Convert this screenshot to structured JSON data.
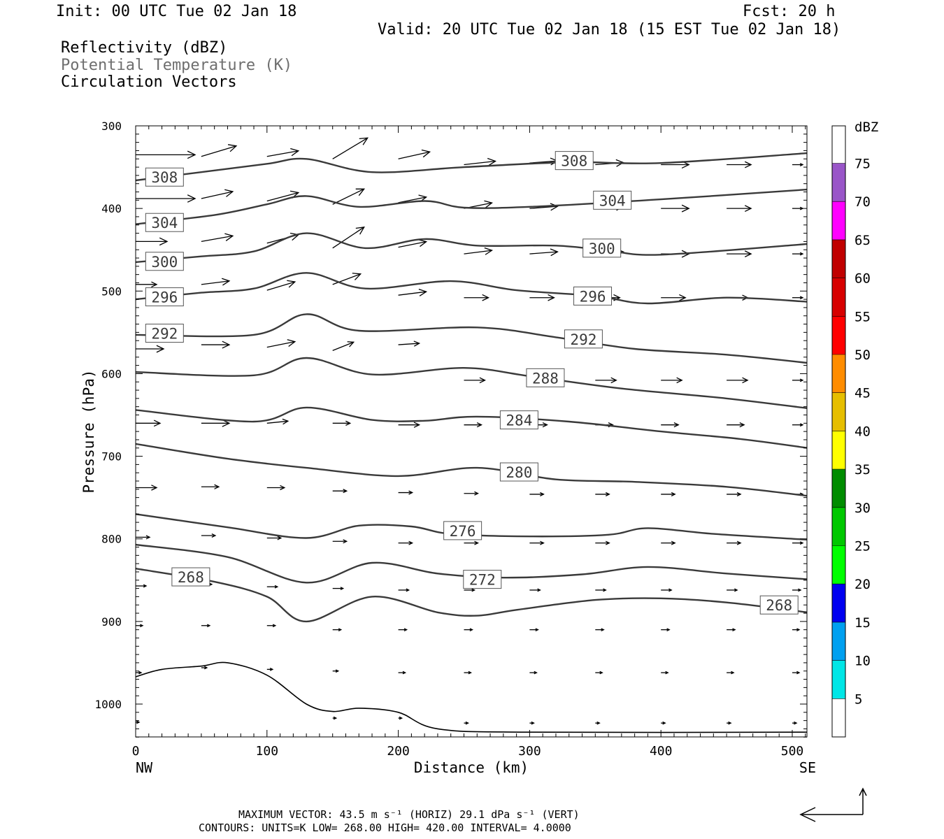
{
  "header": {
    "init": "Init: 00 UTC Tue 02 Jan 18",
    "fcst": "Fcst:   20 h",
    "valid": "Valid: 20 UTC Tue 02 Jan 18 (15 EST Tue 02 Jan 18)",
    "field1": "Reflectivity (dBZ)",
    "field2": "Potential Temperature (K)",
    "field3": "Circulation Vectors"
  },
  "footer": {
    "max_vector": "MAXIMUM VECTOR:  43.5 m s⁻¹ (HORIZ)        29.1 dPa s⁻¹ (VERT)",
    "contours": "CONTOURS:  UNITS=K  LOW=   268.00       HIGH=   420.00       INTERVAL=    4.0000"
  },
  "colors": {
    "contour": "#3a3a3a",
    "terrain": "#000000",
    "vector": "#000000"
  },
  "chart_data": {
    "type": "cross-section",
    "xlabel": "Distance (km)",
    "ylabel": "Pressure (hPa)",
    "x_ticks": [
      "0",
      "100",
      "200",
      "300",
      "400",
      "500"
    ],
    "y_ticks": [
      "300",
      "400",
      "500",
      "600",
      "700",
      "800",
      "900",
      "1000"
    ],
    "x_end_labels": {
      "left": "NW",
      "right": "SE"
    },
    "xlim": [
      0,
      512
    ],
    "ylim": [
      300,
      1040
    ],
    "colorbar": {
      "title": "dBZ",
      "labels": [
        "5",
        "10",
        "15",
        "20",
        "25",
        "30",
        "35",
        "40",
        "45",
        "50",
        "55",
        "60",
        "65",
        "70",
        "75"
      ],
      "colors": [
        "#ffffff",
        "#00e6e6",
        "#00a0f0",
        "#0000f0",
        "#00ff00",
        "#00c800",
        "#008c00",
        "#ffff00",
        "#e6be00",
        "#ff8c00",
        "#ff0000",
        "#d70000",
        "#c00000",
        "#ff00ff",
        "#9955c8"
      ]
    },
    "theta_contours": [
      {
        "value": 308,
        "label": "308",
        "label_positions": [
          [
            22,
            362
          ],
          [
            334,
            342
          ]
        ],
        "points": [
          [
            0,
            366
          ],
          [
            50,
            356
          ],
          [
            100,
            346
          ],
          [
            130,
            340
          ],
          [
            180,
            356
          ],
          [
            250,
            350
          ],
          [
            330,
            344
          ],
          [
            400,
            345
          ],
          [
            512,
            333
          ]
        ]
      },
      {
        "value": 304,
        "label": "304",
        "label_positions": [
          [
            22,
            417
          ],
          [
            363,
            390
          ]
        ],
        "points": [
          [
            0,
            419
          ],
          [
            60,
            408
          ],
          [
            100,
            395
          ],
          [
            130,
            385
          ],
          [
            170,
            398
          ],
          [
            220,
            391
          ],
          [
            250,
            399
          ],
          [
            300,
            398
          ],
          [
            400,
            389
          ],
          [
            512,
            377
          ]
        ]
      },
      {
        "value": 300,
        "label": "300",
        "label_positions": [
          [
            22,
            464
          ],
          [
            355,
            448
          ]
        ],
        "points": [
          [
            0,
            465
          ],
          [
            50,
            458
          ],
          [
            90,
            452
          ],
          [
            130,
            430
          ],
          [
            175,
            448
          ],
          [
            220,
            437
          ],
          [
            260,
            445
          ],
          [
            320,
            445
          ],
          [
            360,
            451
          ],
          [
            400,
            456
          ],
          [
            512,
            443
          ]
        ]
      },
      {
        "value": 296,
        "label": "296",
        "label_positions": [
          [
            22,
            507
          ],
          [
            348,
            506
          ]
        ],
        "points": [
          [
            0,
            510
          ],
          [
            50,
            502
          ],
          [
            90,
            497
          ],
          [
            130,
            478
          ],
          [
            175,
            497
          ],
          [
            240,
            488
          ],
          [
            290,
            499
          ],
          [
            350,
            506
          ],
          [
            390,
            515
          ],
          [
            450,
            508
          ],
          [
            512,
            513
          ]
        ]
      },
      {
        "value": 292,
        "label": "292",
        "label_positions": [
          [
            22,
            551
          ],
          [
            341,
            558
          ]
        ],
        "points": [
          [
            0,
            553
          ],
          [
            90,
            553
          ],
          [
            130,
            528
          ],
          [
            170,
            548
          ],
          [
            260,
            544
          ],
          [
            320,
            556
          ],
          [
            380,
            570
          ],
          [
            450,
            577
          ],
          [
            512,
            587
          ]
        ]
      },
      {
        "value": 288,
        "label": "288",
        "label_positions": [
          [
            312,
            605
          ]
        ],
        "points": [
          [
            0,
            598
          ],
          [
            90,
            602
          ],
          [
            130,
            581
          ],
          [
            180,
            601
          ],
          [
            250,
            593
          ],
          [
            300,
            603
          ],
          [
            370,
            618
          ],
          [
            450,
            630
          ],
          [
            512,
            642
          ]
        ]
      },
      {
        "value": 284,
        "label": "284",
        "label_positions": [
          [
            292,
            656
          ]
        ],
        "points": [
          [
            0,
            644
          ],
          [
            90,
            658
          ],
          [
            130,
            641
          ],
          [
            180,
            656
          ],
          [
            220,
            657
          ],
          [
            260,
            652
          ],
          [
            330,
            658
          ],
          [
            400,
            670
          ],
          [
            460,
            679
          ],
          [
            512,
            690
          ]
        ]
      },
      {
        "value": 280,
        "label": "280",
        "label_positions": [
          [
            292,
            719
          ]
        ],
        "points": [
          [
            0,
            685
          ],
          [
            70,
            703
          ],
          [
            130,
            714
          ],
          [
            200,
            724
          ],
          [
            260,
            714
          ],
          [
            320,
            728
          ],
          [
            380,
            731
          ],
          [
            450,
            737
          ],
          [
            512,
            748
          ]
        ]
      },
      {
        "value": 276,
        "label": "276",
        "label_positions": [
          [
            249,
            790
          ]
        ],
        "points": [
          [
            0,
            770
          ],
          [
            70,
            786
          ],
          [
            130,
            799
          ],
          [
            170,
            784
          ],
          [
            210,
            785
          ],
          [
            240,
            794
          ],
          [
            300,
            797
          ],
          [
            360,
            795
          ],
          [
            390,
            787
          ],
          [
            440,
            794
          ],
          [
            512,
            801
          ]
        ]
      },
      {
        "value": 272,
        "label": "272",
        "label_positions": [
          [
            264,
            849
          ]
        ],
        "points": [
          [
            0,
            807
          ],
          [
            70,
            822
          ],
          [
            130,
            853
          ],
          [
            180,
            829
          ],
          [
            230,
            842
          ],
          [
            280,
            847
          ],
          [
            340,
            843
          ],
          [
            390,
            834
          ],
          [
            450,
            842
          ],
          [
            512,
            849
          ]
        ]
      },
      {
        "value": 268,
        "label": "268",
        "label_positions": [
          [
            42,
            846
          ],
          [
            490,
            880
          ]
        ],
        "points": [
          [
            0,
            836
          ],
          [
            60,
            852
          ],
          [
            100,
            870
          ],
          [
            130,
            900
          ],
          [
            180,
            870
          ],
          [
            230,
            889
          ],
          [
            260,
            893
          ],
          [
            290,
            886
          ],
          [
            350,
            874
          ],
          [
            400,
            872
          ],
          [
            450,
            877
          ],
          [
            512,
            889
          ]
        ]
      }
    ],
    "terrain_hPa": [
      [
        0,
        967
      ],
      [
        20,
        958
      ],
      [
        50,
        954
      ],
      [
        70,
        950
      ],
      [
        100,
        965
      ],
      [
        130,
        1000
      ],
      [
        150,
        1009
      ],
      [
        170,
        1005
      ],
      [
        200,
        1010
      ],
      [
        230,
        1030
      ],
      [
        300,
        1034
      ],
      [
        512,
        1034
      ]
    ],
    "vectors": [
      [
        0,
        335,
        85,
        0
      ],
      [
        50,
        337,
        50,
        -15
      ],
      [
        100,
        337,
        45,
        -8
      ],
      [
        150,
        340,
        50,
        -30
      ],
      [
        200,
        340,
        45,
        -10
      ],
      [
        250,
        347,
        45,
        -5
      ],
      [
        300,
        345,
        40,
        -3
      ],
      [
        350,
        347,
        40,
        -3
      ],
      [
        400,
        347,
        40,
        0
      ],
      [
        450,
        347,
        35,
        0
      ],
      [
        500,
        347,
        15,
        0
      ],
      [
        0,
        388,
        85,
        0
      ],
      [
        50,
        388,
        45,
        -10
      ],
      [
        100,
        391,
        45,
        -12
      ],
      [
        150,
        395,
        45,
        -22
      ],
      [
        200,
        393,
        40,
        -8
      ],
      [
        250,
        400,
        40,
        -8
      ],
      [
        300,
        400,
        40,
        -3
      ],
      [
        350,
        400,
        40,
        -3
      ],
      [
        400,
        400,
        40,
        0
      ],
      [
        450,
        400,
        35,
        0
      ],
      [
        500,
        400,
        15,
        0
      ],
      [
        0,
        440,
        45,
        0
      ],
      [
        50,
        440,
        45,
        -8
      ],
      [
        100,
        442,
        45,
        -12
      ],
      [
        150,
        448,
        45,
        -30
      ],
      [
        200,
        447,
        40,
        -8
      ],
      [
        250,
        455,
        40,
        -5
      ],
      [
        300,
        455,
        40,
        -3
      ],
      [
        350,
        455,
        40,
        -3
      ],
      [
        400,
        455,
        40,
        0
      ],
      [
        450,
        455,
        35,
        0
      ],
      [
        500,
        455,
        15,
        0
      ],
      [
        0,
        492,
        30,
        0
      ],
      [
        50,
        492,
        40,
        -5
      ],
      [
        100,
        499,
        40,
        -12
      ],
      [
        150,
        492,
        40,
        -15
      ],
      [
        200,
        505,
        40,
        -5
      ],
      [
        250,
        508,
        35,
        0
      ],
      [
        300,
        508,
        35,
        0
      ],
      [
        350,
        508,
        35,
        0
      ],
      [
        400,
        508,
        35,
        0
      ],
      [
        450,
        508,
        30,
        0
      ],
      [
        500,
        508,
        15,
        0
      ],
      [
        0,
        570,
        40,
        0
      ],
      [
        50,
        565,
        40,
        0
      ],
      [
        100,
        568,
        40,
        -8
      ],
      [
        150,
        572,
        30,
        -12
      ],
      [
        200,
        565,
        30,
        -2
      ],
      [
        250,
        608,
        30,
        0
      ],
      [
        300,
        608,
        30,
        0
      ],
      [
        350,
        608,
        30,
        0
      ],
      [
        400,
        608,
        30,
        0
      ],
      [
        450,
        608,
        30,
        0
      ],
      [
        500,
        608,
        15,
        0
      ],
      [
        0,
        660,
        35,
        0
      ],
      [
        50,
        660,
        40,
        0
      ],
      [
        100,
        660,
        30,
        -3
      ],
      [
        150,
        660,
        25,
        0
      ],
      [
        200,
        662,
        30,
        0
      ],
      [
        250,
        662,
        25,
        0
      ],
      [
        300,
        662,
        25,
        0
      ],
      [
        350,
        662,
        25,
        0
      ],
      [
        400,
        662,
        25,
        0
      ],
      [
        450,
        662,
        25,
        0
      ],
      [
        500,
        662,
        15,
        0
      ],
      [
        0,
        738,
        30,
        0
      ],
      [
        50,
        737,
        25,
        0
      ],
      [
        100,
        738,
        25,
        0
      ],
      [
        150,
        742,
        20,
        0
      ],
      [
        200,
        744,
        20,
        0
      ],
      [
        250,
        745,
        20,
        0
      ],
      [
        300,
        746,
        20,
        0
      ],
      [
        350,
        746,
        20,
        0
      ],
      [
        400,
        746,
        20,
        0
      ],
      [
        450,
        746,
        20,
        0
      ],
      [
        500,
        746,
        15,
        0
      ],
      [
        0,
        798,
        20,
        0
      ],
      [
        50,
        796,
        20,
        0
      ],
      [
        100,
        799,
        20,
        0
      ],
      [
        150,
        803,
        20,
        0
      ],
      [
        200,
        805,
        20,
        0
      ],
      [
        250,
        805,
        20,
        0
      ],
      [
        300,
        805,
        20,
        0
      ],
      [
        350,
        805,
        20,
        0
      ],
      [
        400,
        805,
        20,
        0
      ],
      [
        450,
        805,
        20,
        0
      ],
      [
        500,
        805,
        15,
        0
      ],
      [
        0,
        857,
        15,
        0
      ],
      [
        50,
        855,
        15,
        0
      ],
      [
        100,
        858,
        15,
        0
      ],
      [
        150,
        860,
        15,
        0
      ],
      [
        200,
        862,
        15,
        0
      ],
      [
        250,
        862,
        15,
        0
      ],
      [
        300,
        862,
        15,
        0
      ],
      [
        350,
        862,
        15,
        0
      ],
      [
        400,
        862,
        15,
        0
      ],
      [
        450,
        862,
        15,
        0
      ],
      [
        500,
        862,
        12,
        0
      ],
      [
        0,
        905,
        10,
        0
      ],
      [
        50,
        905,
        12,
        0
      ],
      [
        100,
        905,
        12,
        0
      ],
      [
        150,
        910,
        12,
        0
      ],
      [
        200,
        910,
        12,
        0
      ],
      [
        250,
        910,
        12,
        0
      ],
      [
        300,
        910,
        12,
        0
      ],
      [
        350,
        910,
        12,
        0
      ],
      [
        400,
        910,
        12,
        0
      ],
      [
        450,
        910,
        12,
        0
      ],
      [
        500,
        910,
        10,
        0
      ],
      [
        0,
        962,
        8,
        0
      ],
      [
        50,
        956,
        8,
        0
      ],
      [
        100,
        958,
        8,
        0
      ],
      [
        150,
        960,
        8,
        0
      ],
      [
        200,
        962,
        10,
        0
      ],
      [
        250,
        962,
        10,
        0
      ],
      [
        300,
        962,
        10,
        0
      ],
      [
        350,
        962,
        10,
        0
      ],
      [
        400,
        962,
        10,
        0
      ],
      [
        450,
        962,
        10,
        0
      ],
      [
        500,
        962,
        10,
        0
      ],
      [
        0,
        1022,
        5,
        0
      ],
      [
        150,
        1017,
        5,
        0
      ],
      [
        200,
        1017,
        5,
        0
      ],
      [
        250,
        1023,
        6,
        0
      ],
      [
        300,
        1023,
        6,
        0
      ],
      [
        350,
        1023,
        6,
        0
      ],
      [
        400,
        1023,
        6,
        0
      ],
      [
        450,
        1023,
        6,
        0
      ],
      [
        500,
        1023,
        6,
        0
      ]
    ]
  }
}
